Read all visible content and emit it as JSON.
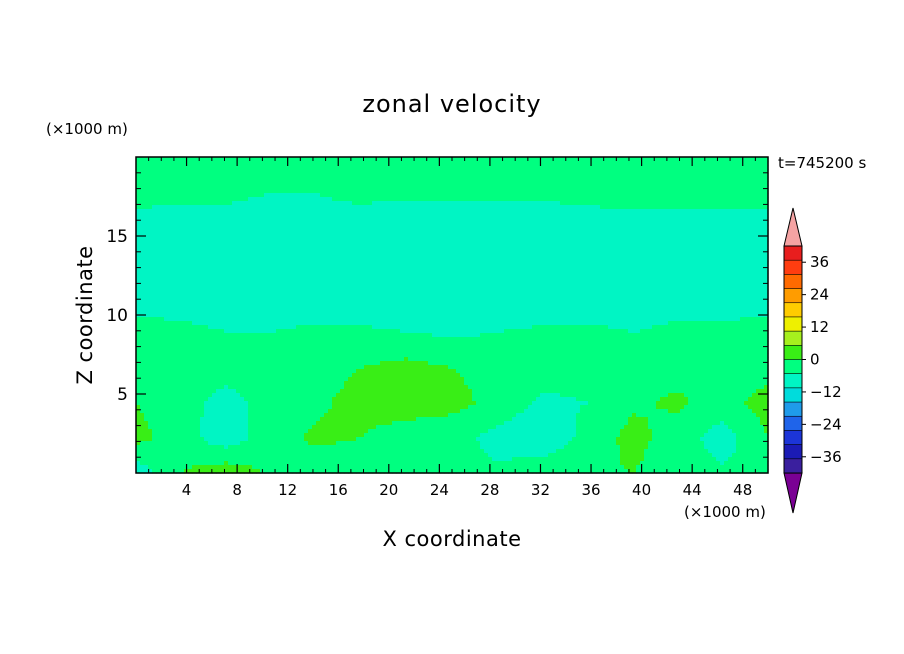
{
  "chart_data": {
    "type": "heatmap",
    "title": "zonal velocity",
    "time_label": "t=745200 s",
    "xlabel": "X coordinate",
    "ylabel": "Z coordinate",
    "x_unit": "(×1000 m)",
    "y_unit": "(×1000 m)",
    "xlim": [
      0,
      50
    ],
    "ylim": [
      0,
      20
    ],
    "x_ticks": [
      4,
      8,
      12,
      16,
      20,
      24,
      28,
      32,
      36,
      40,
      44,
      48
    ],
    "y_ticks": [
      5,
      10,
      15
    ],
    "colorbar": {
      "labels": [
        36,
        24,
        12,
        0,
        -12,
        -24,
        -36
      ],
      "levels": [
        -42,
        -36,
        -30,
        -24,
        -18,
        -12,
        -6,
        0,
        6,
        12,
        18,
        24,
        30,
        36,
        42
      ],
      "colors": [
        "#7a0094",
        "#3a1f9e",
        "#1b1bb5",
        "#1c35d8",
        "#1f64ea",
        "#1f9bea",
        "#00dcdc",
        "#00f5c4",
        "#00ff80",
        "#39ee16",
        "#a6f01e",
        "#eef000",
        "#ffcc00",
        "#ff9c00",
        "#ff6a00",
        "#ff3d10",
        "#e81e1e",
        "#f5a3a3"
      ],
      "extend": "both"
    },
    "field": {
      "columns": 15,
      "rows": 10,
      "note_values": "zonal velocity sampled on coarse grid (rows top to bottom, z from 20 to 0)",
      "values": [
        [
          2,
          2,
          3,
          2,
          2,
          2,
          3,
          4,
          3,
          2,
          3,
          4,
          5,
          2,
          2
        ],
        [
          1,
          1,
          1,
          0,
          0,
          1,
          1,
          1,
          1,
          1,
          2,
          2,
          2,
          1,
          1
        ],
        [
          -1,
          -2,
          -2,
          -2,
          -1,
          -2,
          -3,
          -4,
          -4,
          -3,
          -3,
          -2,
          -2,
          -1,
          -1
        ],
        [
          -2,
          -3,
          -3,
          -3,
          -4,
          -5,
          -6,
          -6,
          -6,
          -6,
          -5,
          -4,
          -3,
          -2,
          -2
        ],
        [
          -1,
          -2,
          -2,
          -3,
          -3,
          -4,
          -4,
          -5,
          -4,
          -4,
          -3,
          -3,
          -2,
          -2,
          -1
        ],
        [
          1,
          1,
          0,
          0,
          1,
          1,
          0,
          -1,
          0,
          1,
          1,
          0,
          1,
          1,
          1
        ],
        [
          4,
          3,
          2,
          3,
          4,
          6,
          8,
          6,
          4,
          2,
          2,
          3,
          4,
          3,
          3
        ],
        [
          6,
          2,
          -2,
          2,
          5,
          8,
          9,
          8,
          4,
          -1,
          0,
          5,
          7,
          3,
          9
        ],
        [
          8,
          3,
          -4,
          4,
          7,
          6,
          3,
          2,
          -2,
          -5,
          2,
          8,
          3,
          -3,
          6
        ],
        [
          -4,
          6,
          10,
          5,
          3,
          2,
          6,
          3,
          1,
          4,
          5,
          6,
          3,
          1,
          2
        ]
      ]
    }
  }
}
